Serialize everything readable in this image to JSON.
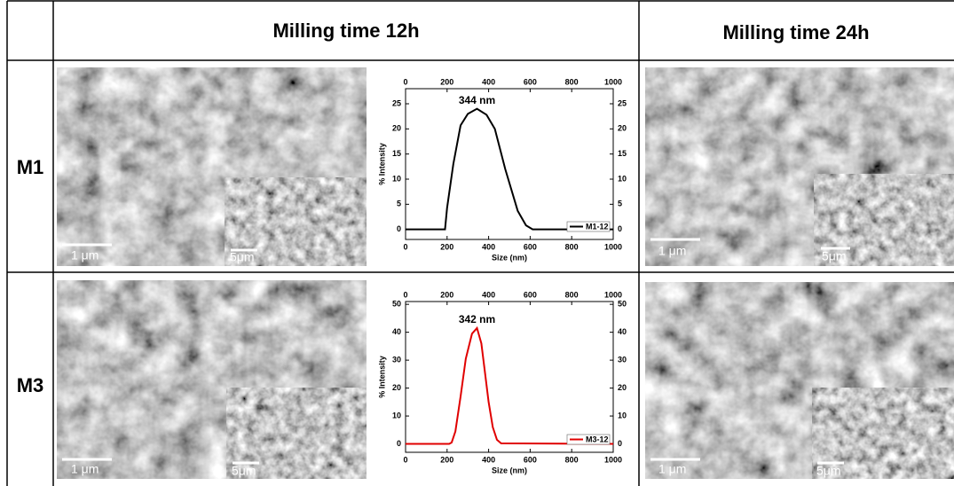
{
  "table": {
    "header": [
      "Milling time 12h",
      "Milling time 24h"
    ],
    "rows": [
      {
        "label": "M1",
        "scale_bars": [
          "1 μm",
          "5μm",
          "1 μm",
          "5μm"
        ]
      },
      {
        "label": "M3",
        "scale_bars": [
          "1 μm",
          "5μm",
          "1 μm",
          "5μm"
        ]
      }
    ]
  },
  "chart_data": [
    {
      "type": "line",
      "annotation": "344 nm",
      "xlabel": "Size (nm)",
      "ylabel": "% Intensity",
      "xlim": [
        0,
        1000
      ],
      "xticks": [
        0,
        200,
        400,
        600,
        800,
        1000
      ],
      "ylim": [
        -2,
        28
      ],
      "yticks": [
        0,
        5,
        10,
        15,
        20,
        25
      ],
      "legend": "lower right",
      "series": [
        {
          "name": "M1-12",
          "color": "#000000",
          "x": [
            0,
            190,
            200,
            230,
            265,
            300,
            344,
            390,
            430,
            480,
            540,
            580,
            612,
            1000
          ],
          "values": [
            0,
            0,
            4.3,
            13,
            20.7,
            23,
            24,
            22.8,
            20,
            12,
            3.7,
            0.8,
            0,
            0
          ]
        }
      ]
    },
    {
      "type": "line",
      "annotation": "342 nm",
      "xlabel": "Size (nm)",
      "ylabel": "% Intensity",
      "xlim": [
        0,
        1000
      ],
      "xticks": [
        0,
        200,
        400,
        600,
        800,
        1000
      ],
      "ylim": [
        -3,
        51
      ],
      "yticks": [
        0,
        10,
        20,
        30,
        40,
        50
      ],
      "legend": "lower right",
      "series": [
        {
          "name": "M3-12",
          "color": "#e00000",
          "x": [
            0,
            210,
            222,
            240,
            265,
            290,
            320,
            344,
            365,
            380,
            400,
            420,
            440,
            460,
            1000
          ],
          "values": [
            0,
            0,
            0.5,
            4.5,
            17,
            30.5,
            39.5,
            41.5,
            36,
            27,
            15,
            6,
            1.5,
            0.2,
            0
          ]
        }
      ]
    }
  ]
}
